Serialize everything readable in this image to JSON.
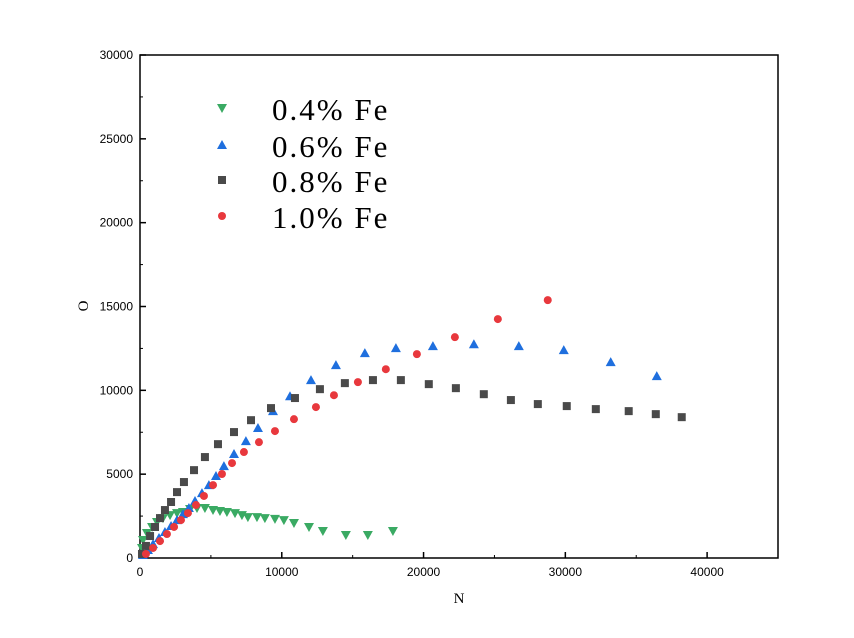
{
  "chart_data": {
    "type": "scatter",
    "xlabel": "N",
    "ylabel": "O",
    "xlim": [
      0,
      45000
    ],
    "ylim": [
      0,
      30000
    ],
    "xticks": [
      0,
      10000,
      20000,
      30000,
      40000
    ],
    "yticks": [
      0,
      5000,
      10000,
      15000,
      20000,
      25000,
      30000
    ],
    "grid": false,
    "legend_position": "top-left",
    "series": [
      {
        "name": "0.4% Fe",
        "color": "#3aaa63",
        "marker": "triangle-down",
        "x": [
          140,
          210,
          490,
          850,
          1200,
          1620,
          2120,
          2610,
          3030,
          3530,
          4020,
          4580,
          5150,
          5640,
          6130,
          6700,
          7190,
          7610,
          8250,
          8810,
          9520,
          10150,
          10860,
          11920,
          12900,
          14520,
          16070,
          17840
        ],
        "y": [
          600,
          1070,
          1490,
          1850,
          2150,
          2380,
          2560,
          2680,
          2740,
          2920,
          2980,
          2980,
          2860,
          2800,
          2740,
          2680,
          2560,
          2440,
          2440,
          2380,
          2330,
          2260,
          2090,
          1850,
          1610,
          1370,
          1370,
          1610
        ]
      },
      {
        "name": "0.6% Fe",
        "color": "#1f6fde",
        "marker": "triangle-up",
        "x": [
          210,
          560,
          920,
          1340,
          1760,
          2190,
          2610,
          3030,
          3450,
          3880,
          4370,
          4860,
          5360,
          5920,
          6630,
          7470,
          8320,
          9380,
          10580,
          12060,
          13820,
          15860,
          18050,
          20660,
          23550,
          26720,
          29890,
          33200,
          36450
        ],
        "y": [
          180,
          480,
          830,
          1190,
          1550,
          1910,
          2260,
          2620,
          2980,
          3400,
          3870,
          4350,
          4890,
          5480,
          6200,
          6970,
          7750,
          8760,
          9650,
          10610,
          11500,
          12220,
          12520,
          12640,
          12750,
          12640,
          12400,
          11680,
          10850
        ]
      },
      {
        "name": "0.8% Fe",
        "color": "#4a4a4a",
        "marker": "square",
        "x": [
          140,
          420,
          710,
          1060,
          1410,
          1760,
          2190,
          2610,
          3100,
          3810,
          4580,
          5500,
          6630,
          7830,
          9240,
          10930,
          12690,
          14450,
          16430,
          18400,
          20370,
          22280,
          24250,
          26160,
          28060,
          30100,
          32150,
          34470,
          36380,
          38210
        ],
        "y": [
          240,
          720,
          1310,
          1850,
          2380,
          2860,
          3340,
          3930,
          4530,
          5240,
          6020,
          6790,
          7510,
          8220,
          8940,
          9540,
          10070,
          10430,
          10610,
          10610,
          10370,
          10130,
          9770,
          9420,
          9180,
          9060,
          8880,
          8760,
          8580,
          8400
        ]
      },
      {
        "name": "1.0% Fe",
        "color": "#e8383d",
        "marker": "circle",
        "x": [
          420,
          920,
          1410,
          1900,
          2400,
          2890,
          3380,
          3950,
          4510,
          5150,
          5780,
          6490,
          7330,
          8390,
          9520,
          10860,
          12410,
          13680,
          15370,
          17340,
          19530,
          22210,
          25240,
          28760
        ],
        "y": [
          240,
          600,
          1010,
          1430,
          1850,
          2260,
          2680,
          3160,
          3700,
          4350,
          5010,
          5660,
          6320,
          6910,
          7570,
          8280,
          9000,
          9710,
          10490,
          11260,
          12160,
          13170,
          14250,
          15380
        ]
      }
    ]
  }
}
